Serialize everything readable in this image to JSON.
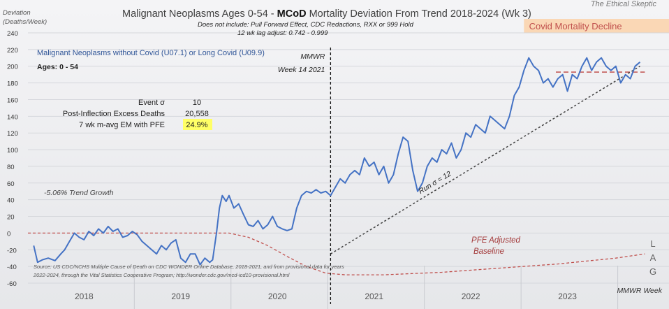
{
  "chart_data": {
    "type": "line",
    "title_prefix": "Malignant Neoplasms Ages 0-54 - ",
    "title_bold": "MCoD",
    "title_suffix": " Mortality Deviation From Trend  2018-2024 (Wk 3)",
    "watermark": "The Ethical Skeptic",
    "subtitle1": "Does not include: Pull Forward Effect,  CDC Redactions, RXX or 999 Hold",
    "subtitle2": "12 wk lag adjust: 0.742 - 0.999",
    "ylabel1": "Deviation",
    "ylabel2": "(Deaths/Week)",
    "ylim": [
      -60,
      240
    ],
    "yticks": [
      -60,
      -40,
      -20,
      0,
      20,
      40,
      60,
      80,
      100,
      120,
      140,
      160,
      180,
      200,
      220,
      240
    ],
    "xlim": [
      2017.72,
      2024.35
    ],
    "year_labels": [
      {
        "label": "2018",
        "x": 2018.3
      },
      {
        "label": "2019",
        "x": 2019.3
      },
      {
        "label": "2020",
        "x": 2020.3
      },
      {
        "label": "2021",
        "x": 2021.3
      },
      {
        "label": "2022",
        "x": 2022.3
      },
      {
        "label": "2023",
        "x": 2023.3
      }
    ],
    "year_dividers": [
      2018.82,
      2019.82,
      2020.82,
      2021.82,
      2022.82,
      2023.82
    ],
    "series_label": "Malignant Neoplasms without Covid (U07.1) or Long Covid (U09.9)",
    "ages_label": "Ages: 0 - 54",
    "series": [
      {
        "name": "Malignant Neoplasms without Covid (U07.1) or Long Covid (U09.9)",
        "color": "#4472c4",
        "x": [
          2017.78,
          2017.82,
          2017.87,
          2017.93,
          2018.0,
          2018.06,
          2018.1,
          2018.15,
          2018.2,
          2018.25,
          2018.3,
          2018.35,
          2018.4,
          2018.45,
          2018.5,
          2018.55,
          2018.6,
          2018.65,
          2018.7,
          2018.75,
          2018.8,
          2018.85,
          2018.9,
          2018.95,
          2019.0,
          2019.05,
          2019.1,
          2019.15,
          2019.2,
          2019.25,
          2019.3,
          2019.35,
          2019.4,
          2019.45,
          2019.5,
          2019.55,
          2019.6,
          2019.63,
          2019.67,
          2019.7,
          2019.73,
          2019.77,
          2019.8,
          2019.85,
          2019.9,
          2019.95,
          2020.0,
          2020.05,
          2020.1,
          2020.15,
          2020.2,
          2020.25,
          2020.3,
          2020.35,
          2020.4,
          2020.45,
          2020.5,
          2020.55,
          2020.6,
          2020.65,
          2020.7,
          2020.75,
          2020.8,
          2020.85,
          2020.9,
          2020.95,
          2021.0,
          2021.05,
          2021.1,
          2021.15,
          2021.2,
          2021.25,
          2021.3,
          2021.35,
          2021.4,
          2021.45,
          2021.5,
          2021.55,
          2021.6,
          2021.65,
          2021.7,
          2021.75,
          2021.8,
          2021.85,
          2021.9,
          2021.95,
          2022.0,
          2022.05,
          2022.1,
          2022.15,
          2022.2,
          2022.25,
          2022.3,
          2022.35,
          2022.4,
          2022.45,
          2022.5,
          2022.55,
          2022.6,
          2022.65,
          2022.7,
          2022.75,
          2022.8,
          2022.85,
          2022.9,
          2022.95,
          2023.0,
          2023.05,
          2023.1,
          2023.15,
          2023.2,
          2023.25,
          2023.3,
          2023.35,
          2023.4,
          2023.45,
          2023.5,
          2023.55,
          2023.6,
          2023.65,
          2023.7,
          2023.75,
          2023.8,
          2023.85,
          2023.9,
          2023.95,
          2024.0,
          2024.05
        ],
        "y": [
          -15,
          -35,
          -32,
          -30,
          -33,
          -25,
          -20,
          -10,
          0,
          -5,
          -8,
          2,
          -3,
          5,
          0,
          8,
          2,
          5,
          -5,
          -3,
          2,
          -2,
          -10,
          -15,
          -20,
          -25,
          -15,
          -20,
          -12,
          -8,
          -30,
          -35,
          -25,
          -25,
          -38,
          -30,
          -35,
          -32,
          0,
          30,
          45,
          38,
          45,
          30,
          35,
          22,
          10,
          8,
          15,
          5,
          10,
          20,
          8,
          5,
          3,
          5,
          30,
          45,
          50,
          48,
          52,
          48,
          50,
          45,
          55,
          65,
          60,
          70,
          75,
          70,
          90,
          80,
          85,
          70,
          80,
          60,
          70,
          95,
          115,
          110,
          75,
          50,
          60,
          80,
          90,
          85,
          100,
          95,
          108,
          90,
          100,
          120,
          115,
          130,
          125,
          120,
          140,
          135,
          130,
          125,
          140,
          165,
          175,
          195,
          210,
          200,
          195,
          180,
          185,
          175,
          185,
          190,
          170,
          190,
          185,
          200,
          210,
          195,
          205,
          210,
          200,
          195,
          200,
          180,
          190,
          185,
          200,
          205
        ]
      }
    ],
    "trend_label": "-5.06% Trend Growth",
    "trend": {
      "x": [
        2017.72,
        2019.8,
        2020.0,
        2020.2,
        2020.4,
        2020.6,
        2020.8,
        2021.0,
        2021.4,
        2022.0,
        2022.6,
        2023.2,
        2023.8,
        2024.1
      ],
      "y": [
        0,
        0,
        -5,
        -15,
        -28,
        -40,
        -48,
        -50,
        -50,
        -47,
        -42,
        -37,
        -30,
        -25
      ]
    },
    "pfe_label1": "PFE Adjusted",
    "pfe_label2": "Baseline",
    "decline_ref": {
      "x": [
        2023.18,
        2024.1
      ],
      "y": [
        193,
        193
      ]
    },
    "run_line": {
      "x": [
        2020.85,
        2024.05
      ],
      "y": [
        -25,
        200
      ]
    },
    "run_label": "Run σ = 12",
    "mmwr_x": 2020.85,
    "mmwr_label1": "MMWR",
    "mmwr_label2": "Week 14 2021",
    "decline_banner": "Covid Mortality Decline",
    "decline_banner_x0": 2022.85,
    "decline_banner_x1": 2024.35,
    "stats": [
      {
        "label": "Event σ",
        "value": "10",
        "highlight": false
      },
      {
        "label": "Post-Inflection Excess Deaths",
        "value": "20,558",
        "highlight": false
      },
      {
        "label": "7 wk m-avg EM with PFE",
        "value": "24.9%",
        "highlight": true
      }
    ],
    "source1": "Source: US CDC/NCHS Multiple Cause of Death on CDC WONDER Online Database, 2018-2021, and from provisional data for years",
    "source2": "2022-2024, through the Vital Statistics Cooperative Program; http://wonder.cdc.gov/mcd-icd10-provisional.html",
    "lag_letters": [
      "L",
      "A",
      "G"
    ],
    "xlabel": "MMWR Week",
    "colors": {
      "series": "#4472c4",
      "trend": "#c0504d",
      "run": "#404040",
      "banner": "#fad7b5",
      "banner_text": "#c0504d",
      "highlight": "#ffff66",
      "title": "#404040"
    }
  }
}
